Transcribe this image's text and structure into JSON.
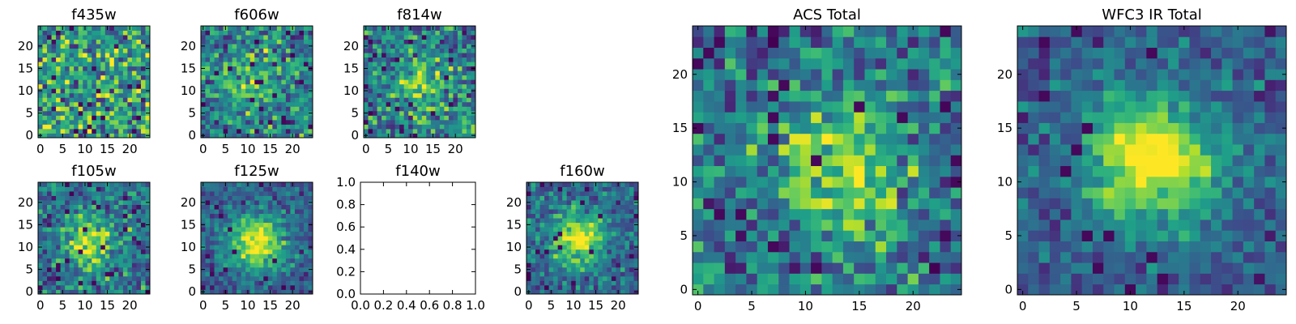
{
  "chart_data": [
    {
      "type": "heatmap",
      "title": "f435w",
      "xticks": [
        "0",
        "5",
        "10",
        "15",
        "20"
      ],
      "yticks": [
        "0",
        "5",
        "10",
        "15",
        "20"
      ],
      "grid": 25,
      "peak": [
        12,
        12
      ],
      "contrast": 0.0,
      "noise": 0.95,
      "xlim": [
        -0.5,
        24.5
      ],
      "ylim": [
        -0.5,
        24.5
      ],
      "colormap": "viridis"
    },
    {
      "type": "heatmap",
      "title": "f606w",
      "xticks": [
        "0",
        "5",
        "10",
        "15",
        "20"
      ],
      "yticks": [
        "0",
        "5",
        "10",
        "15",
        "20"
      ],
      "grid": 25,
      "peak": [
        11,
        12
      ],
      "contrast": 0.35,
      "noise": 0.8,
      "xlim": [
        -0.5,
        24.5
      ],
      "ylim": [
        -0.5,
        24.5
      ],
      "colormap": "viridis"
    },
    {
      "type": "heatmap",
      "title": "f814w",
      "xticks": [
        "0",
        "5",
        "10",
        "15",
        "20"
      ],
      "yticks": [
        "0",
        "5",
        "10",
        "15",
        "20"
      ],
      "grid": 25,
      "peak": [
        12,
        11
      ],
      "contrast": 0.4,
      "noise": 0.8,
      "xlim": [
        -0.5,
        24.5
      ],
      "ylim": [
        -0.5,
        24.5
      ],
      "colormap": "viridis"
    },
    {
      "type": "heatmap",
      "title": "f105w",
      "xticks": [
        "0",
        "5",
        "10",
        "15",
        "20"
      ],
      "yticks": [
        "0",
        "5",
        "10",
        "15",
        "20"
      ],
      "grid": 25,
      "peak": [
        11,
        11
      ],
      "contrast": 0.5,
      "noise": 0.7,
      "xlim": [
        -0.5,
        24.5
      ],
      "ylim": [
        -0.5,
        24.5
      ],
      "colormap": "viridis"
    },
    {
      "type": "heatmap",
      "title": "f125w",
      "xticks": [
        "0",
        "5",
        "10",
        "15",
        "20"
      ],
      "yticks": [
        "0",
        "5",
        "10",
        "15",
        "20"
      ],
      "grid": 25,
      "peak": [
        12,
        11
      ],
      "contrast": 0.7,
      "noise": 0.5,
      "xlim": [
        -0.5,
        24.5
      ],
      "ylim": [
        -0.5,
        24.5
      ],
      "colormap": "viridis"
    },
    {
      "type": "empty",
      "title": "f140w",
      "xticks": [
        "0.0",
        "0.2",
        "0.4",
        "0.6",
        "0.8",
        "1.0"
      ],
      "yticks": [
        "0.0",
        "0.2",
        "0.4",
        "0.6",
        "0.8",
        "1.0"
      ],
      "xlim": [
        0,
        1
      ],
      "ylim": [
        0,
        1
      ]
    },
    {
      "type": "heatmap",
      "title": "f160w",
      "xticks": [
        "0",
        "5",
        "10",
        "15",
        "20"
      ],
      "yticks": [
        "0",
        "5",
        "10",
        "15",
        "20"
      ],
      "grid": 25,
      "peak": [
        11,
        12
      ],
      "contrast": 0.65,
      "noise": 0.55,
      "xlim": [
        -0.5,
        24.5
      ],
      "ylim": [
        -0.5,
        24.5
      ],
      "colormap": "viridis"
    },
    {
      "type": "heatmap",
      "title": "ACS Total",
      "xticks": [
        "0",
        "5",
        "10",
        "15",
        "20"
      ],
      "yticks": [
        "0",
        "5",
        "10",
        "15",
        "20"
      ],
      "grid": 25,
      "peak": [
        13,
        11
      ],
      "contrast": 0.45,
      "noise": 0.75,
      "xlim": [
        -0.5,
        24.5
      ],
      "ylim": [
        -0.5,
        24.5
      ],
      "colormap": "viridis"
    },
    {
      "type": "heatmap",
      "title": "WFC3 IR Total",
      "xticks": [
        "0",
        "5",
        "10",
        "15",
        "20"
      ],
      "yticks": [
        "0",
        "5",
        "10",
        "15",
        "20"
      ],
      "grid": 25,
      "peak": [
        12,
        12
      ],
      "contrast": 0.75,
      "noise": 0.45,
      "xlim": [
        -0.5,
        24.5
      ],
      "ylim": [
        -0.5,
        24.5
      ],
      "colormap": "viridis"
    }
  ]
}
